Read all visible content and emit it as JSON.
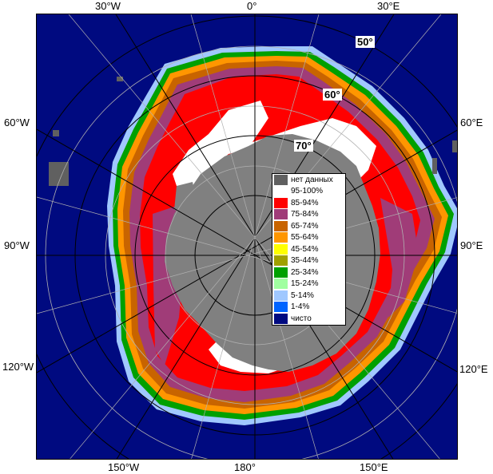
{
  "map": {
    "longitude_labels": {
      "top": [
        "30°W",
        "0°",
        "30°E"
      ],
      "left": [
        "60°W",
        "90°W",
        "120°W"
      ],
      "right": [
        "60°E",
        "90°E",
        "120°E"
      ],
      "bottom": [
        "150°W",
        "180°",
        "150°E"
      ]
    },
    "latitude_labels": [
      "50°",
      "60°",
      "70°"
    ],
    "colors": {
      "ocean": "#000a80",
      "land": "#808080",
      "no_data": "#606060",
      "grid": "#b0b0b0",
      "graticule_circle": "#000000"
    }
  },
  "legend": {
    "items": [
      {
        "label": "нет данных",
        "color": "#606060"
      },
      {
        "label": "95-100%",
        "color": "#ffffff"
      },
      {
        "label": "85-94%",
        "color": "#ff0000"
      },
      {
        "label": "75-84%",
        "color": "#a03c78"
      },
      {
        "label": "65-74%",
        "color": "#c86400"
      },
      {
        "label": "55-64%",
        "color": "#ff9600"
      },
      {
        "label": "45-54%",
        "color": "#ffff00"
      },
      {
        "label": "35-44%",
        "color": "#a0a000"
      },
      {
        "label": "25-34%",
        "color": "#00a000"
      },
      {
        "label": "15-24%",
        "color": "#a0ffa0"
      },
      {
        "label": "5-14%",
        "color": "#a0c8ff"
      },
      {
        "label": "1-4%",
        "color": "#0064ff"
      },
      {
        "label": "чисто",
        "color": "#000a80"
      }
    ]
  }
}
